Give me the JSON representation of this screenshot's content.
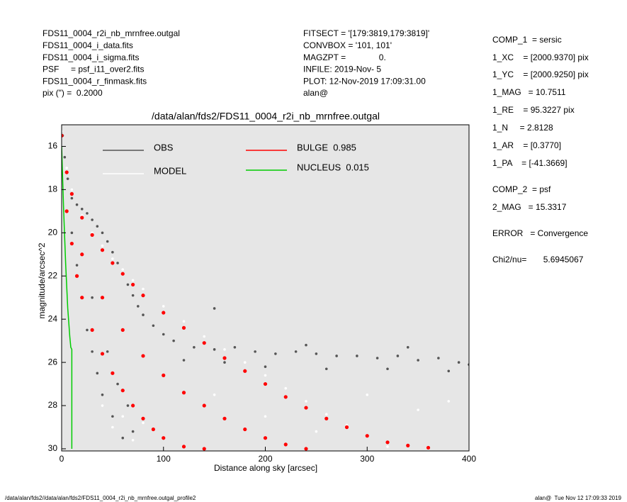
{
  "header": {
    "left": [
      "FDS11_0004_r2i_nb_mrnfree.outgal",
      "FDS11_0004_i_data.fits",
      "FDS11_0004_i_sigma.fits",
      "PSF     = psf_i11_over2.fits",
      "FDS11_0004_r_finmask.fits",
      "pix (\") =  0.2000"
    ],
    "middle": [
      "FITSECT = '[179:3819,179:3819]'",
      "CONVBOX = '101, 101'",
      "MAGZPT =              0.",
      "INFILE: 2019-Nov- 5",
      "PLOT: 12-Nov-2019 17:09:31.00",
      "alan@"
    ],
    "right": [
      "COMP_1  = sersic",
      "1_XC    = [2000.9370] pix",
      "1_YC    = [2000.9250] pix",
      "1_MAG   = 10.7511",
      "1_RE    = 95.3227 pix",
      "1_N     = 2.8128",
      "1_AR    = [0.3770]",
      "1_PA    = [-41.3669]",
      "COMP_2  = psf",
      "2_MAG   = 15.3317",
      "ERROR   = Convergence",
      "Chi2/nu=       5.6945067"
    ]
  },
  "chart_data": {
    "type": "scatter",
    "title": "/data/alan/fds2/FDS11_0004_r2i_nb_mrnfree.outgal",
    "x_label": "Distance along sky [arcsec]",
    "y_label": "magnitude/arcsec^2",
    "xlim": [
      0,
      400
    ],
    "ylim": [
      30.1,
      15
    ],
    "xticks": [
      0,
      100,
      200,
      300,
      400
    ],
    "yticks": [
      16,
      18,
      20,
      22,
      24,
      26,
      28,
      30
    ],
    "series": [
      {
        "name": "OBS",
        "color": "#555555",
        "style": "markers",
        "x": [
          1,
          3,
          6,
          10,
          15,
          20,
          25,
          30,
          35,
          40,
          45,
          50,
          55,
          60,
          65,
          70,
          75,
          80,
          90,
          100,
          110,
          130,
          150,
          170,
          190,
          210,
          230,
          250,
          270,
          290,
          310,
          330,
          350,
          370,
          390,
          400,
          120,
          160,
          200,
          260,
          320,
          380,
          140,
          240,
          340,
          10,
          15,
          20,
          25,
          30,
          35,
          40,
          50,
          60,
          20,
          30,
          45,
          55,
          65,
          70,
          150
        ],
        "values": [
          15.5,
          16.5,
          17.5,
          18.4,
          18.7,
          18.9,
          19.1,
          19.4,
          19.7,
          20,
          20.4,
          20.9,
          21.4,
          21.9,
          22.4,
          22.9,
          23.4,
          23.8,
          24.3,
          24.7,
          25,
          25.3,
          25.4,
          25.3,
          25.5,
          25.6,
          25.5,
          25.6,
          25.7,
          25.7,
          25.8,
          25.7,
          25.9,
          25.8,
          26,
          26.1,
          25.9,
          26,
          26.2,
          26.3,
          26.3,
          26.4,
          25.1,
          25.2,
          25.3,
          20,
          21.5,
          23,
          24.5,
          25.5,
          26.5,
          27.5,
          28.5,
          29.5,
          21,
          23,
          25.5,
          27,
          28,
          29.2,
          23.5
        ]
      },
      {
        "name": "MODEL",
        "color": "#ffffff",
        "style": "markers",
        "x": [
          0,
          5,
          10,
          20,
          30,
          40,
          50,
          60,
          70,
          80,
          100,
          120,
          140,
          160,
          180,
          200,
          220,
          240,
          260,
          280,
          300,
          320,
          40,
          50,
          60,
          70,
          80,
          100,
          150,
          200,
          250,
          300,
          350,
          380
        ],
        "values": [
          15.3,
          17,
          18,
          19.2,
          20,
          20.6,
          21.2,
          21.7,
          22.2,
          22.6,
          23.4,
          24.1,
          24.8,
          25.4,
          26,
          26.6,
          27.2,
          27.8,
          28.4,
          28.9,
          29.4,
          29.9,
          28,
          29,
          28.5,
          29.6,
          28.8,
          29.5,
          27.5,
          28.5,
          29.2,
          27.5,
          28.2,
          27.8
        ]
      },
      {
        "name": "BULGE  0.985",
        "color": "#ff0000",
        "style": "markers",
        "x": [
          0,
          5,
          10,
          20,
          30,
          40,
          50,
          60,
          70,
          80,
          100,
          120,
          140,
          160,
          180,
          200,
          220,
          240,
          260,
          280,
          300,
          320,
          340,
          360,
          5,
          10,
          15,
          20,
          30,
          40,
          50,
          60,
          70,
          80,
          90,
          100,
          120,
          140,
          20,
          40,
          60,
          80,
          100,
          120,
          140,
          160,
          180,
          200,
          220,
          240
        ],
        "values": [
          15.5,
          17.2,
          18.2,
          19.3,
          20.1,
          20.8,
          21.4,
          21.9,
          22.4,
          22.9,
          23.7,
          24.4,
          25.1,
          25.8,
          26.4,
          27,
          27.6,
          28.1,
          28.6,
          29,
          29.4,
          29.7,
          29.85,
          29.95,
          19,
          20.5,
          22,
          23,
          24.5,
          25.6,
          26.5,
          27.3,
          28,
          28.6,
          29.1,
          29.5,
          29.9,
          30,
          21,
          23,
          24.5,
          25.7,
          26.6,
          27.4,
          28,
          28.6,
          29.1,
          29.5,
          29.8,
          30
        ]
      },
      {
        "name": "NUCLEUS  0.015",
        "color": "#00cc00",
        "style": "line",
        "x": [
          0,
          1,
          2,
          4,
          6,
          8,
          9,
          10,
          10
        ],
        "values": [
          16,
          17.5,
          19,
          21.5,
          23.5,
          24.8,
          25.3,
          25.4,
          30
        ]
      }
    ]
  },
  "footer": {
    "left": "/data/alan/fds2//data/alan/fds2/FDS11_0004_r2i_nb_mrnfree.outgal_profile2",
    "right": "alan@  Tue Nov 12 17:09:33 2019"
  }
}
